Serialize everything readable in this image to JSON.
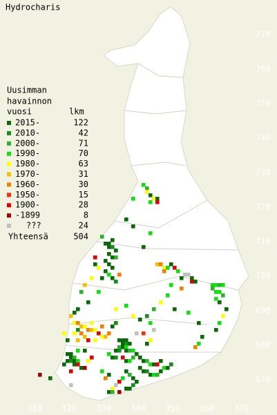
{
  "title": "Hydrocharis",
  "legend": {
    "heading": [
      "Uusimman",
      "havainnon",
      "vuosi"
    ],
    "count_heading": "lkm",
    "rows": [
      {
        "label": "2015-",
        "count": 122,
        "color": "#0a6a0a"
      },
      {
        "label": "2010-",
        "count": 42,
        "color": "#1a8a1a"
      },
      {
        "label": "2000-",
        "count": 71,
        "color": "#30b030"
      },
      {
        "label": "1990-",
        "count": 70,
        "color": "#10e010"
      },
      {
        "label": "1980-",
        "count": 63,
        "color": "#ffff00"
      },
      {
        "label": "1970-",
        "count": 31,
        "color": "#f0c000"
      },
      {
        "label": "1960-",
        "count": 30,
        "color": "#f08000"
      },
      {
        "label": "1950-",
        "count": 15,
        "color": "#ff3000"
      },
      {
        "label": "1900-",
        "count": 28,
        "color": "#e00000"
      },
      {
        "label": "-1899",
        "count": 8,
        "color": "#a00000"
      },
      {
        "label": "???",
        "count": 24,
        "color": "#c0c0c0"
      }
    ],
    "total_label": "Yhteensä",
    "total": 504
  },
  "map": {
    "xlim": [
      300,
      380
    ],
    "ylim": [
      660,
      780
    ],
    "xticks": [
      310,
      320,
      330,
      340,
      350,
      360,
      370
    ],
    "yticks": [
      670,
      680,
      690,
      700,
      710,
      720,
      730,
      740,
      750,
      760,
      770
    ],
    "squares": [
      [
        321,
        686,
        4
      ],
      [
        322,
        686,
        6
      ],
      [
        323,
        685,
        5
      ],
      [
        324,
        685,
        4
      ],
      [
        325,
        684,
        6
      ],
      [
        326,
        684,
        5
      ],
      [
        327,
        684,
        4
      ],
      [
        322,
        684,
        1
      ],
      [
        321,
        683,
        4
      ],
      [
        323,
        683,
        6
      ],
      [
        324,
        682,
        5
      ],
      [
        328,
        683,
        8
      ],
      [
        329,
        682,
        4
      ],
      [
        330,
        682,
        5
      ],
      [
        331,
        683,
        6
      ],
      [
        322,
        681,
        5
      ],
      [
        325,
        681,
        8
      ],
      [
        327,
        681,
        4
      ],
      [
        320,
        688,
        5
      ],
      [
        321,
        689,
        0
      ],
      [
        326,
        686,
        4
      ],
      [
        329,
        685,
        6
      ],
      [
        332,
        685,
        0
      ],
      [
        333,
        686,
        1
      ],
      [
        319,
        677,
        0
      ],
      [
        320,
        677,
        0
      ],
      [
        320,
        676,
        0
      ],
      [
        321,
        676,
        2
      ],
      [
        319,
        675,
        0
      ],
      [
        320,
        675,
        1
      ],
      [
        321,
        675,
        0
      ],
      [
        322,
        675,
        3
      ],
      [
        321,
        674,
        0
      ],
      [
        322,
        674,
        8
      ],
      [
        323,
        673,
        0
      ],
      [
        324,
        673,
        9
      ],
      [
        325,
        675,
        4
      ],
      [
        326,
        676,
        8
      ],
      [
        324,
        678,
        0
      ],
      [
        322,
        678,
        3
      ],
      [
        318,
        674,
        0
      ],
      [
        320,
        672,
        8
      ],
      [
        334,
        681,
        0
      ],
      [
        335,
        681,
        0
      ],
      [
        336,
        681,
        0
      ],
      [
        335,
        680,
        0
      ],
      [
        336,
        680,
        1
      ],
      [
        337,
        680,
        0
      ],
      [
        334,
        679,
        2
      ],
      [
        335,
        679,
        0
      ],
      [
        336,
        679,
        3
      ],
      [
        333,
        678,
        0
      ],
      [
        334,
        678,
        1
      ],
      [
        336,
        678,
        0
      ],
      [
        337,
        678,
        2
      ],
      [
        338,
        678,
        3
      ],
      [
        339,
        677,
        0
      ],
      [
        331,
        677,
        3
      ],
      [
        332,
        676,
        0
      ],
      [
        333,
        676,
        1
      ],
      [
        335,
        676,
        8
      ],
      [
        336,
        675,
        0
      ],
      [
        337,
        675,
        3
      ],
      [
        338,
        676,
        2
      ],
      [
        340,
        676,
        0
      ],
      [
        341,
        675,
        0
      ],
      [
        342,
        675,
        2
      ],
      [
        343,
        674,
        3
      ],
      [
        344,
        674,
        0
      ],
      [
        345,
        674,
        8
      ],
      [
        346,
        675,
        0
      ],
      [
        347,
        673,
        3
      ],
      [
        348,
        673,
        0
      ],
      [
        349,
        674,
        1
      ],
      [
        340,
        673,
        0
      ],
      [
        341,
        672,
        0
      ],
      [
        342,
        672,
        1
      ],
      [
        343,
        671,
        0
      ],
      [
        344,
        671,
        3
      ],
      [
        345,
        671,
        2
      ],
      [
        346,
        672,
        0
      ],
      [
        336,
        672,
        0
      ],
      [
        337,
        671,
        2
      ],
      [
        338,
        670,
        0
      ],
      [
        335,
        670,
        3
      ],
      [
        334,
        669,
        8
      ],
      [
        333,
        668,
        10
      ],
      [
        332,
        667,
        4
      ],
      [
        331,
        666,
        0
      ],
      [
        332,
        666,
        2
      ],
      [
        334,
        666,
        9
      ],
      [
        336,
        667,
        0
      ],
      [
        337,
        667,
        0
      ],
      [
        338,
        668,
        1
      ],
      [
        339,
        669,
        0
      ],
      [
        330,
        670,
        6
      ],
      [
        331,
        671,
        0
      ],
      [
        329,
        672,
        3
      ],
      [
        342,
        680,
        0
      ],
      [
        343,
        681,
        4
      ],
      [
        344,
        684,
        10
      ],
      [
        343,
        686,
        3
      ],
      [
        340,
        687,
        0
      ],
      [
        338,
        688,
        4
      ],
      [
        339,
        683,
        10
      ],
      [
        341,
        683,
        7
      ],
      [
        330,
        709,
        0
      ],
      [
        331,
        709,
        0
      ],
      [
        332,
        710,
        0
      ],
      [
        331,
        708,
        0
      ],
      [
        332,
        708,
        1
      ],
      [
        333,
        707,
        0
      ],
      [
        331,
        706,
        0
      ],
      [
        332,
        705,
        0
      ],
      [
        333,
        705,
        2
      ],
      [
        330,
        704,
        0
      ],
      [
        331,
        703,
        0
      ],
      [
        332,
        702,
        0
      ],
      [
        330,
        701,
        0
      ],
      [
        331,
        700,
        3
      ],
      [
        329,
        699,
        0
      ],
      [
        332,
        699,
        0
      ],
      [
        333,
        698,
        1
      ],
      [
        327,
        703,
        0
      ],
      [
        328,
        702,
        4
      ],
      [
        334,
        700,
        6
      ],
      [
        327,
        705,
        8
      ],
      [
        329,
        711,
        2
      ],
      [
        361,
        697,
        3
      ],
      [
        362,
        697,
        3
      ],
      [
        363,
        697,
        2
      ],
      [
        364,
        697,
        3
      ],
      [
        361,
        696,
        2
      ],
      [
        362,
        695,
        3
      ],
      [
        363,
        695,
        3
      ],
      [
        364,
        694,
        2
      ],
      [
        362,
        693,
        3
      ],
      [
        363,
        692,
        0
      ],
      [
        365,
        690,
        0
      ],
      [
        364,
        688,
        4
      ],
      [
        363,
        686,
        3
      ],
      [
        362,
        684,
        0
      ],
      [
        345,
        703,
        5
      ],
      [
        346,
        703,
        6
      ],
      [
        347,
        702,
        4
      ],
      [
        348,
        702,
        3
      ],
      [
        349,
        703,
        0
      ],
      [
        347,
        701,
        6
      ],
      [
        350,
        702,
        8
      ],
      [
        351,
        701,
        3
      ],
      [
        353,
        700,
        10
      ],
      [
        354,
        700,
        10
      ],
      [
        352,
        699,
        0
      ],
      [
        355,
        699,
        0
      ],
      [
        355,
        698,
        8
      ],
      [
        356,
        698,
        0
      ],
      [
        349,
        697,
        3
      ],
      [
        352,
        696,
        6
      ],
      [
        348,
        694,
        3
      ],
      [
        346,
        692,
        4
      ],
      [
        344,
        690,
        2
      ],
      [
        342,
        688,
        1
      ],
      [
        350,
        690,
        0
      ],
      [
        354,
        689,
        3
      ],
      [
        357,
        686,
        0
      ],
      [
        358,
        682,
        0
      ],
      [
        357,
        680,
        3
      ],
      [
        356,
        679,
        6
      ],
      [
        341,
        726,
        3
      ],
      [
        342,
        725,
        2
      ],
      [
        342,
        724,
        4
      ],
      [
        343,
        723,
        0
      ],
      [
        344,
        722,
        4
      ],
      [
        345,
        722,
        0
      ],
      [
        343,
        721,
        3
      ],
      [
        345,
        721,
        8
      ],
      [
        338,
        722,
        3
      ],
      [
        336,
        716,
        0
      ],
      [
        338,
        714,
        0
      ],
      [
        343,
        712,
        3
      ],
      [
        341,
        708,
        0
      ],
      [
        324,
        697,
        5
      ],
      [
        323,
        695,
        2
      ],
      [
        322,
        690,
        0
      ],
      [
        325,
        692,
        0
      ],
      [
        326,
        699,
        4
      ],
      [
        336,
        691,
        3
      ],
      [
        333,
        690,
        4
      ],
      [
        328,
        695,
        3
      ],
      [
        311,
        671,
        9
      ],
      [
        314,
        670,
        0
      ],
      [
        320,
        668,
        10
      ],
      [
        319,
        681,
        0
      ],
      [
        318,
        683,
        4
      ]
    ]
  }
}
